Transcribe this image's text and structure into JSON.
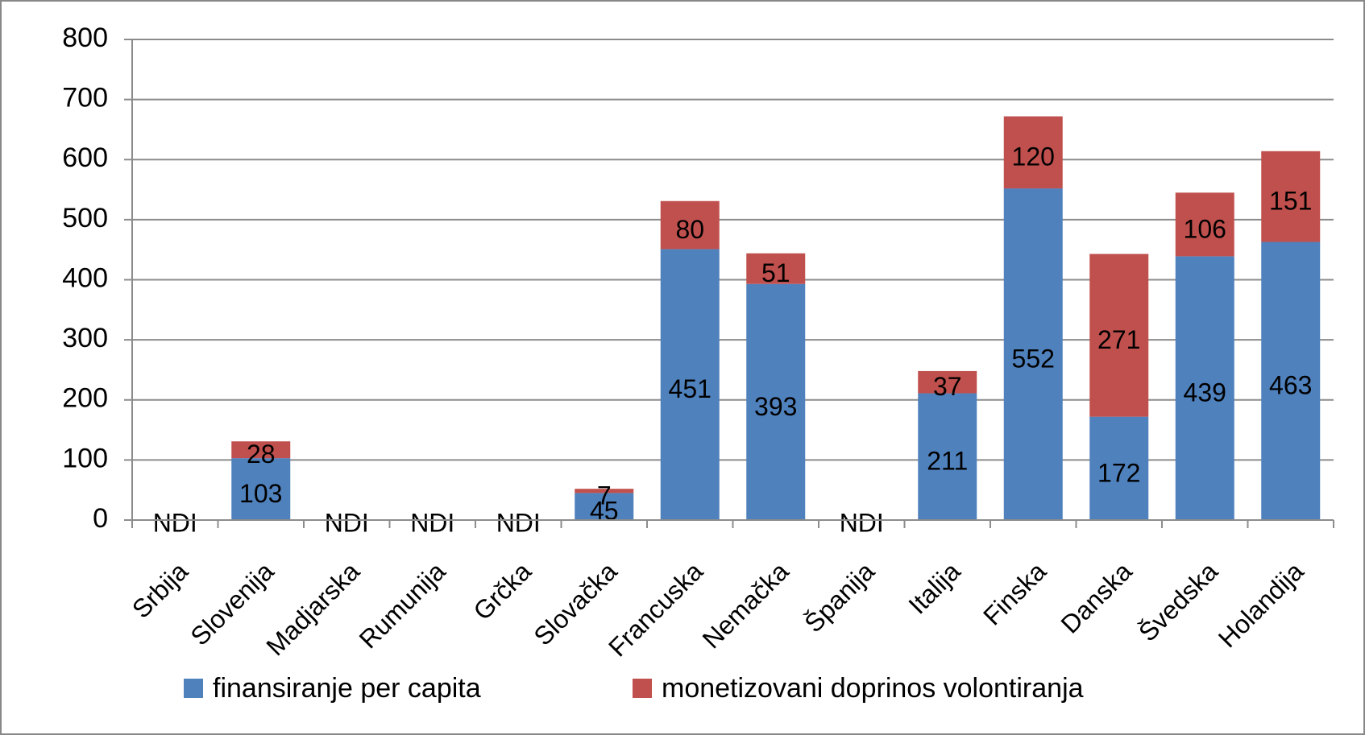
{
  "chart_data": {
    "type": "bar",
    "stacked": true,
    "categories": [
      "Srbija",
      "Slovenija",
      "Madjarska",
      "Rumunija",
      "Grčka",
      "Slovačka",
      "Francuska",
      "Nemačka",
      "Španija",
      "Italija",
      "Finska",
      "Danska",
      "Švedska",
      "Holandija"
    ],
    "series": [
      {
        "name": "finansiranje per capita",
        "color": "#4f81bd",
        "values": [
          null,
          103,
          null,
          null,
          null,
          45,
          451,
          393,
          null,
          211,
          552,
          172,
          439,
          463
        ],
        "value_labels": [
          "NDI",
          "103",
          "NDI",
          "NDI",
          "NDI",
          "45",
          "451",
          "393",
          "NDI",
          "211",
          "552",
          "172",
          "439",
          "463"
        ]
      },
      {
        "name": "monetizovani doprinos volontiranja",
        "color": "#c0504d",
        "values": [
          null,
          28,
          null,
          null,
          null,
          7,
          80,
          51,
          null,
          37,
          120,
          271,
          106,
          151
        ]
      }
    ],
    "ylim": [
      0,
      800
    ],
    "yticks": [
      0,
      100,
      200,
      300,
      400,
      500,
      600,
      700,
      800
    ],
    "grid": true,
    "legend": "bottom"
  }
}
